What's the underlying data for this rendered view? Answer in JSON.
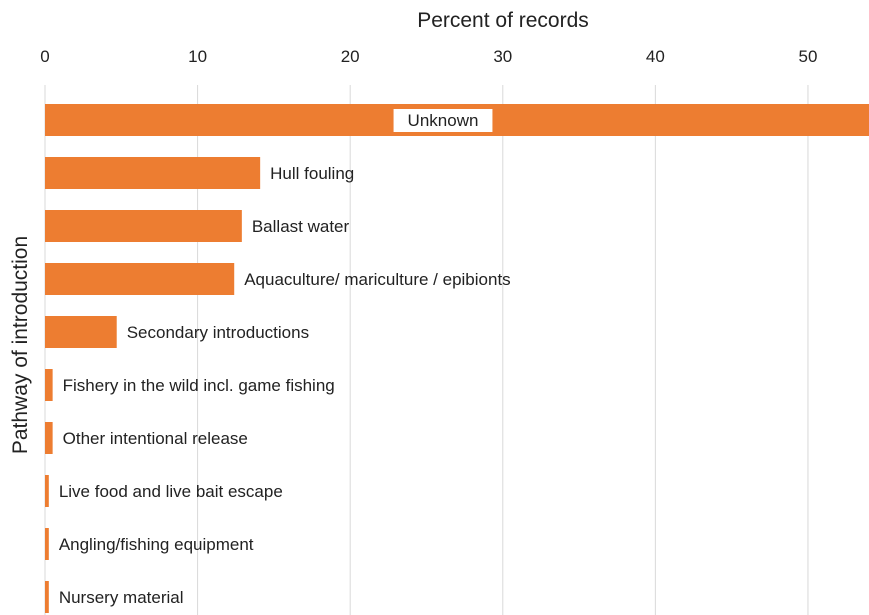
{
  "chart_data": {
    "type": "bar",
    "orientation": "horizontal",
    "title": "",
    "xlabel": "Percent of records",
    "ylabel": "Pathway of introduction",
    "xlim": [
      0,
      54
    ],
    "xticks": [
      0,
      10,
      20,
      30,
      40,
      50
    ],
    "x_axis_position": "top",
    "grid": "vertical",
    "bar_color": "#ED7D31",
    "categories": [
      "Unknown",
      "Hull fouling",
      "Ballast water",
      "Aquaculture/ mariculture / epibionts",
      "Secondary introductions",
      "Fishery in the wild incl. game fishing",
      "Other intentional release",
      "Live food and live bait escape",
      "Angling/fishing equipment",
      "Nursery material"
    ],
    "values": [
      54,
      14.1,
      12.9,
      12.4,
      4.7,
      0.5,
      0.5,
      0.25,
      0.25,
      0.25
    ]
  }
}
